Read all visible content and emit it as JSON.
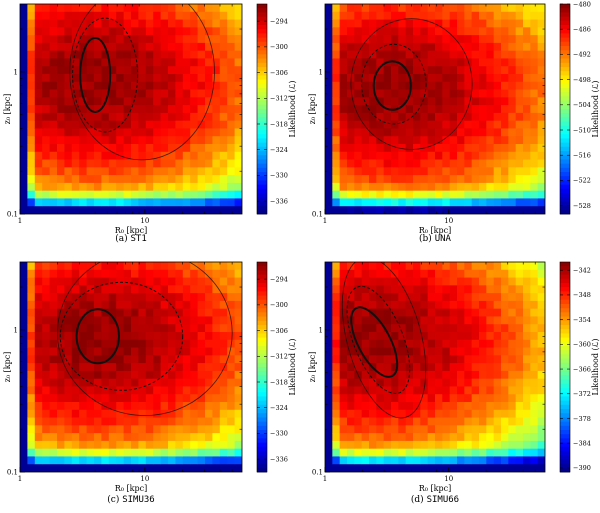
{
  "chart_data": [
    {
      "type": "heatmap",
      "caption_prefix": "(a)",
      "caption_name": "ST1",
      "xlabel": "R₀ [kpc]",
      "ylabel": "z₀ [kpc]",
      "colorbar_label": "Likelihood (ℒ)",
      "x_scale": "log",
      "y_scale": "log",
      "xlim": [
        1,
        60
      ],
      "ylim": [
        0.1,
        3
      ],
      "x_ticks": [
        1,
        10
      ],
      "x_tick_labels": [
        "1",
        "10"
      ],
      "y_ticks": [
        0.1,
        1
      ],
      "y_tick_labels": [
        "0.1",
        "1"
      ],
      "clim": [
        -339,
        -290
      ],
      "colorbar_ticks": [
        -294,
        -300,
        -306,
        -312,
        -318,
        -324,
        -330,
        -336
      ],
      "peak": {
        "x": 4.0,
        "y": 0.85
      },
      "contours": [
        {
          "style": "solid-thick",
          "center": [
            4.0,
            0.95
          ],
          "half_width_dex": 0.12,
          "half_height_dex": 0.26
        },
        {
          "style": "dashed",
          "center": [
            4.8,
            0.95
          ],
          "half_width_dex": 0.26,
          "half_height_dex": 0.4
        },
        {
          "style": "solid-thin",
          "center": [
            9.5,
            1.0
          ],
          "half_width_dex": 0.58,
          "half_height_dex": 0.62
        }
      ]
    },
    {
      "type": "heatmap",
      "caption_prefix": "(b)",
      "caption_name": "UNA",
      "xlabel": "R₀ [kpc]",
      "ylabel": "z₀ [kpc]",
      "colorbar_label": "Likelihood (ℒ)",
      "x_scale": "log",
      "y_scale": "log",
      "xlim": [
        1,
        60
      ],
      "ylim": [
        0.1,
        3
      ],
      "x_ticks": [
        1,
        10
      ],
      "x_tick_labels": [
        "1",
        "10"
      ],
      "y_ticks": [
        0.1,
        1
      ],
      "y_tick_labels": [
        "0.1",
        "1"
      ],
      "clim": [
        -530,
        -480
      ],
      "colorbar_ticks": [
        -480,
        -486,
        -492,
        -498,
        -504,
        -510,
        -516,
        -522,
        -528
      ],
      "peak": {
        "x": 3.5,
        "y": 0.75
      },
      "contours": [
        {
          "style": "solid-thick",
          "center": [
            3.5,
            0.8
          ],
          "half_width_dex": 0.15,
          "half_height_dex": 0.17
        },
        {
          "style": "dashed",
          "center": [
            3.6,
            0.82
          ],
          "half_width_dex": 0.26,
          "half_height_dex": 0.28
        },
        {
          "style": "solid-thin",
          "center": [
            5.0,
            0.82
          ],
          "half_width_dex": 0.49,
          "half_height_dex": 0.46
        }
      ]
    },
    {
      "type": "heatmap",
      "caption_prefix": "(c)",
      "caption_name": "SIMU36",
      "xlabel": "R₀ [kpc]",
      "ylabel": "z₀ [kpc]",
      "colorbar_label": "Likelihood (ℒ)",
      "x_scale": "log",
      "y_scale": "log",
      "xlim": [
        1,
        60
      ],
      "ylim": [
        0.1,
        3
      ],
      "x_ticks": [
        1,
        10
      ],
      "x_tick_labels": [
        "1",
        "10"
      ],
      "y_ticks": [
        0.1,
        1
      ],
      "y_tick_labels": [
        "0.1",
        "1"
      ],
      "clim": [
        -339,
        -290
      ],
      "colorbar_ticks": [
        -294,
        -300,
        -306,
        -312,
        -318,
        -324,
        -330,
        -336
      ],
      "peak": {
        "x": 4.5,
        "y": 0.85
      },
      "contours": [
        {
          "style": "solid-thick",
          "center": [
            4.2,
            0.9
          ],
          "half_width_dex": 0.17,
          "half_height_dex": 0.19
        },
        {
          "style": "dashed",
          "center": [
            6.5,
            0.9
          ],
          "half_width_dex": 0.49,
          "half_height_dex": 0.38
        },
        {
          "style": "solid-thin",
          "center": [
            10.0,
            0.95
          ],
          "half_width_dex": 0.7,
          "half_height_dex": 0.58
        }
      ]
    },
    {
      "type": "heatmap",
      "caption_prefix": "(d)",
      "caption_name": "SIMU66",
      "xlabel": "R₀ [kpc]",
      "ylabel": "z₀ [kpc]",
      "colorbar_label": "Likelihood (ℒ)",
      "x_scale": "log",
      "y_scale": "log",
      "xlim": [
        1,
        60
      ],
      "ylim": [
        0.1,
        3
      ],
      "x_ticks": [
        1,
        10
      ],
      "x_tick_labels": [
        "1",
        "10"
      ],
      "y_ticks": [
        0.1,
        1
      ],
      "y_tick_labels": [
        "0.1",
        "1"
      ],
      "clim": [
        -391,
        -340
      ],
      "colorbar_ticks": [
        -342,
        -348,
        -354,
        -360,
        -366,
        -372,
        -378,
        -384,
        -390
      ],
      "peak": {
        "x": 2.5,
        "y": 0.85
      },
      "contours": [
        {
          "style": "solid-thick",
          "center": [
            2.5,
            0.82
          ],
          "half_width_dex": 0.13,
          "half_height_dex": 0.27,
          "tilt_deg": -28
        },
        {
          "style": "dashed",
          "center": [
            2.7,
            0.85
          ],
          "half_width_dex": 0.2,
          "half_height_dex": 0.4,
          "tilt_deg": -22
        },
        {
          "style": "solid-thin",
          "center": [
            3.0,
            0.88
          ],
          "half_width_dex": 0.3,
          "half_height_dex": 0.58,
          "tilt_deg": -15
        }
      ]
    }
  ]
}
